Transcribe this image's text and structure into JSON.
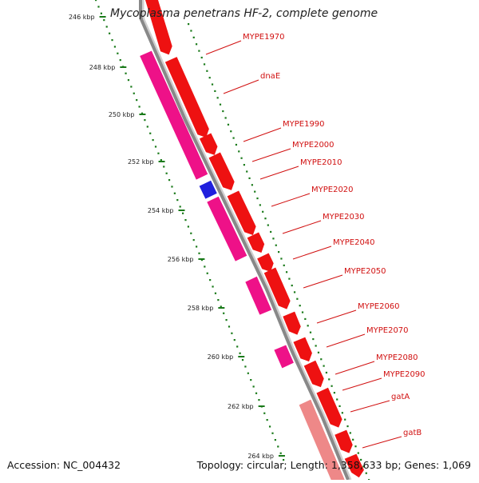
{
  "title": "Mycoplasma penetrans HF-2, complete genome",
  "footer": {
    "accession": "Accession: NC_004432",
    "summary": "Topology: circular; Length: 1,358,633 bp; Genes: 1,069"
  },
  "colors": {
    "forward_gene": "#ee1111",
    "reverse_gene": "#ee1188",
    "highlight_gene": "#2020dd",
    "rna_gene": "#ee8888",
    "backbone": "#888888",
    "ticks": "#1a7a1a",
    "label": "#d11010"
  },
  "scale_ticks": [
    {
      "label": "246 kbp"
    },
    {
      "label": "248 kbp"
    },
    {
      "label": "250 kbp"
    },
    {
      "label": "252 kbp"
    },
    {
      "label": "254 kbp"
    },
    {
      "label": "256 kbp"
    },
    {
      "label": "258 kbp"
    },
    {
      "label": "260 kbp"
    },
    {
      "label": "262 kbp"
    },
    {
      "label": "264 kbp"
    }
  ],
  "gene_labels": [
    {
      "name": "MYPE1970"
    },
    {
      "name": "dnaE"
    },
    {
      "name": "MYPE1990"
    },
    {
      "name": "MYPE2000"
    },
    {
      "name": "MYPE2010"
    },
    {
      "name": "MYPE2020"
    },
    {
      "name": "MYPE2030"
    },
    {
      "name": "MYPE2040"
    },
    {
      "name": "MYPE2050"
    },
    {
      "name": "MYPE2060"
    },
    {
      "name": "MYPE2070"
    },
    {
      "name": "MYPE2080"
    },
    {
      "name": "MYPE2090"
    },
    {
      "name": "gatA"
    },
    {
      "name": "gatB"
    }
  ]
}
